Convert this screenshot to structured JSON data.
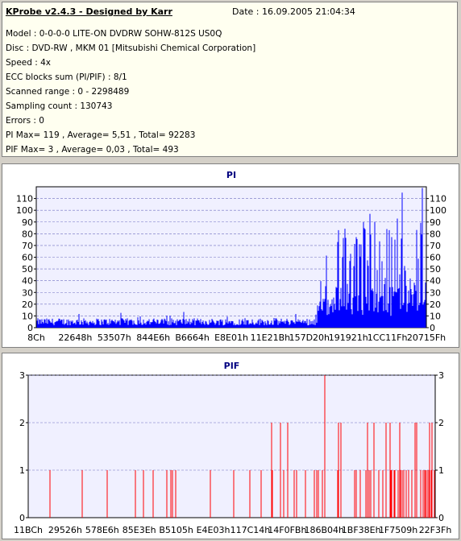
{
  "info": {
    "app_title": "KProbe v2.4.3 - Designed by Karr",
    "date": "Date : 16.09.2005 21:04:34",
    "lines": [
      "Model : 0-0-0-0 LITE-ON DVDRW SOHW-812S  US0Q",
      "Disc : DVD-RW , MKM 01 [Mitsubishi Chemical Corporation]",
      "Speed : 4x",
      "ECC blocks sum (PI/PIF) : 8/1",
      "Scanned range : 0 - 2298489",
      "Sampling count : 130743",
      "Errors : 0",
      "PI Max= 119 , Average= 5,51 , Total= 92283",
      "PIF Max= 3 , Average= 0,03 , Total= 493"
    ]
  },
  "colors": {
    "pi_bar": "#0000ff",
    "pif_bar": "#ff0000",
    "plot_bg": "#f0f0ff",
    "grid": "#7070c0",
    "title": "#000080"
  },
  "chart_data": [
    {
      "type": "bar",
      "title": "PI",
      "ylim": [
        0,
        120
      ],
      "yticks": [
        0,
        10,
        20,
        30,
        40,
        50,
        60,
        70,
        80,
        90,
        100,
        110
      ],
      "ytick_labels": [
        "0",
        "10",
        "20",
        "30",
        "40",
        "50",
        "60",
        "70",
        "80",
        "90",
        "100",
        "110"
      ],
      "xtick_labels": [
        "8Ch",
        "22648h",
        "53507h",
        "844E6h",
        "B6664h",
        "E8E01h",
        "11E21Bh",
        "157D20h",
        "191921h",
        "1CC11Fh",
        "20715Fh"
      ],
      "grid": true,
      "series": [
        {
          "segments": [
            {
              "x_range": [
                0,
                0.72
              ],
              "typical": 5,
              "spikes": [
                12,
                18
              ]
            },
            {
              "x_range": [
                0.72,
                1.0
              ],
              "typical": 25,
              "spikes": [
                119,
                90,
                80,
                70,
                60
              ]
            }
          ]
        }
      ],
      "max": 119
    },
    {
      "type": "bar",
      "title": "PIF",
      "ylim": [
        0,
        3
      ],
      "yticks": [
        0,
        1,
        2,
        3
      ],
      "ytick_labels": [
        "0",
        "1",
        "2",
        "3"
      ],
      "xtick_labels": [
        "11BCh",
        "29526h",
        "578E6h",
        "85E3Eh",
        "B5105h",
        "E4E03h",
        "117C14h",
        "14F0FBh",
        "186B04h",
        "1BF38Eh",
        "1F7509h",
        "22F3Fh"
      ],
      "grid": true,
      "max": 3
    }
  ]
}
